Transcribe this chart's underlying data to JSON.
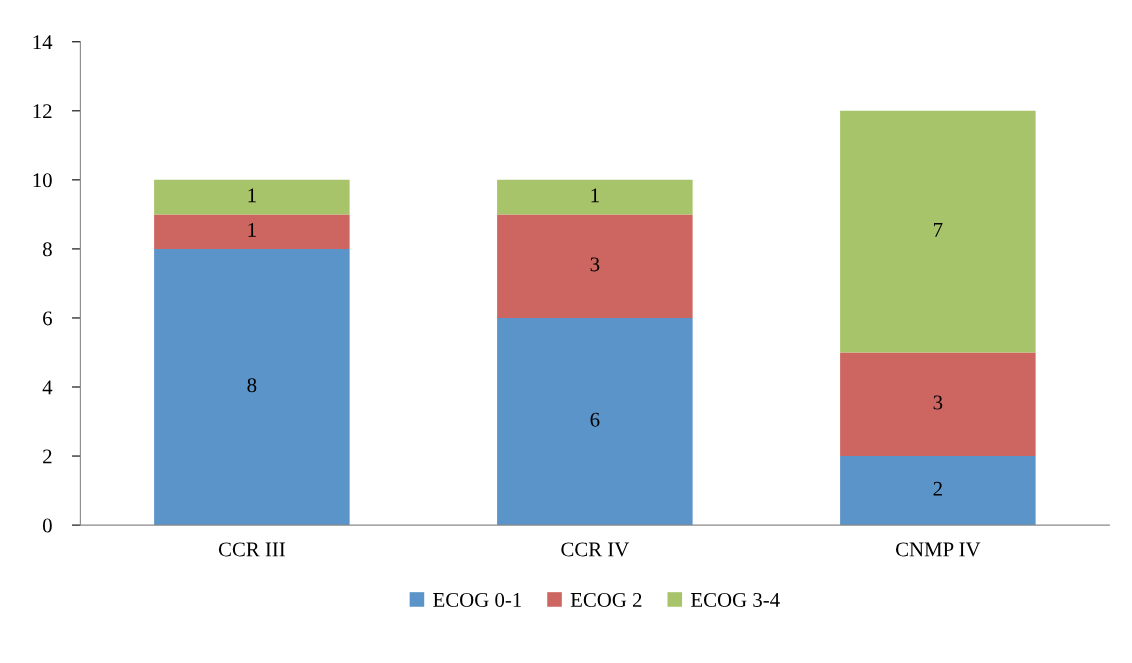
{
  "chart_data": {
    "type": "bar",
    "stacked": true,
    "categories": [
      "CCR III",
      "CCR IV",
      "CNMP IV"
    ],
    "series": [
      {
        "name": "ECOG 0-1",
        "color": "#5b94c8",
        "values": [
          8,
          6,
          2
        ]
      },
      {
        "name": "ECOG 2",
        "color": "#cd6660",
        "values": [
          1,
          3,
          3
        ]
      },
      {
        "name": "ECOG 3-4",
        "color": "#a8c46a",
        "values": [
          1,
          1,
          7
        ]
      }
    ],
    "ylim": [
      0,
      14
    ],
    "yticks": [
      0,
      2,
      4,
      6,
      8,
      10,
      12,
      14
    ],
    "grid": false,
    "legend": "bottom",
    "data_labels": true
  }
}
